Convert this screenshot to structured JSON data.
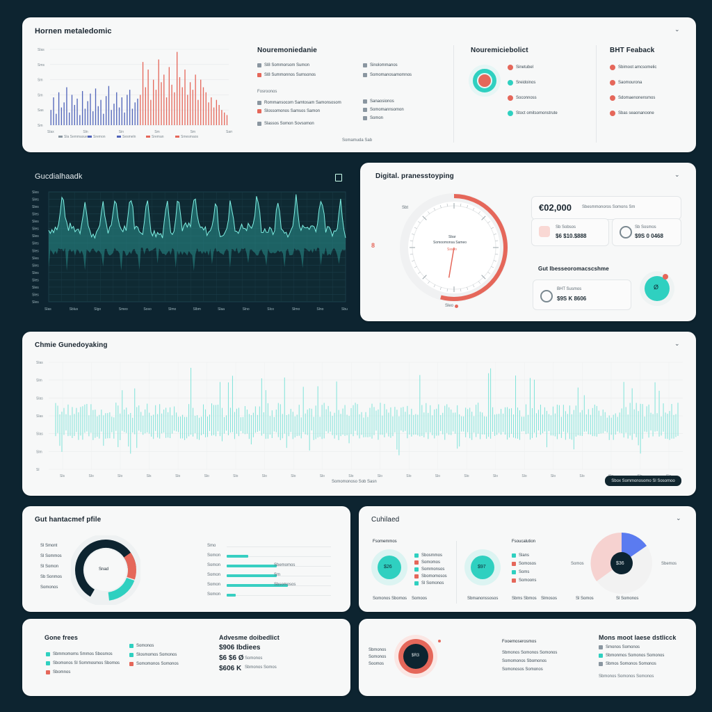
{
  "panel1": {
    "title": "Hornen metaledomic",
    "mid_title": "Nouremoniedanie",
    "mid_subtitle": "Fosroonos",
    "right_title": "Nouremiciebolict",
    "far_title": "BHT Feaback",
    "footer": "Somamuda Sab",
    "mid_items": [
      "Sl8 Sommorsom Sumon",
      "Sl8 Summonnos Sumsonos",
      "Rommansocom Samtosam Samonsosom",
      "Slossomonos Samsos Samon",
      "Slassos Somon Sovsomon"
    ],
    "mid_right_items": [
      "Sinolommanos",
      "Somomanosamomnos",
      "Sanaosionos",
      "Somomannsomon",
      "Somon"
    ],
    "right_items": [
      "Sinetubel",
      "Sreidoinos",
      "Soconnoss",
      "Stoct omitsomonstrute"
    ],
    "far_items": [
      "Sbimoot amcsomelic",
      "Saomourona",
      "Sdomaenonensmos",
      "Sbas seaonanoone"
    ],
    "legend": [
      "Sla Semmasue",
      "Sremon",
      "Sesmeln",
      "Sreman",
      "Smesmaos"
    ],
    "chart_data": {
      "type": "bar",
      "x_ticks": [
        "Slax",
        "Sln",
        "Sin",
        "Sm",
        "Sm",
        "Sam"
      ],
      "y_ticks": [
        "Slas",
        "Sms",
        "Sm",
        "Sm",
        "Sas",
        "Sm"
      ],
      "series": [
        {
          "values": [
            12,
            22,
            9,
            26,
            14,
            18,
            30,
            10,
            24,
            16,
            21,
            8,
            27,
            13,
            19,
            25,
            11,
            29,
            15,
            20,
            9,
            23,
            31,
            12,
            17,
            26,
            14,
            22,
            10,
            24,
            28,
            13,
            18,
            21
          ]
        },
        {
          "values": [
            24,
            50,
            30,
            44,
            20,
            36,
            28,
            52,
            34,
            40,
            22,
            46,
            32,
            26,
            58,
            38,
            30,
            44,
            24,
            34,
            28,
            40,
            20,
            36,
            30,
            26,
            18,
            22,
            14,
            20,
            16,
            12,
            10,
            8
          ]
        }
      ]
    }
  },
  "panel2": {
    "title": "Gucdialhaadk",
    "x_ticks": [
      "Slas",
      "Sblus",
      "Slgo",
      "Smeo",
      "Soso",
      "Slmo",
      "Slbm",
      "Slaa",
      "Slno",
      "Slco",
      "Slmo",
      "Slno",
      "Sbu"
    ],
    "y_ticks": [
      "Sles",
      "Sles",
      "Sles",
      "Sles",
      "Sles",
      "Sles",
      "Sles",
      "Sles",
      "Sles",
      "Sles",
      "Sles",
      "Sles",
      "Sles",
      "Sles",
      "Sles",
      "Sles"
    ]
  },
  "panel3": {
    "title": "Digital. pranesstoyping",
    "gauge_label_top": "Sbar",
    "gauge_label_mid": "Somoomonsa Sameo",
    "gauge_label_low": "Sssoo",
    "gauge_footer": "Sleo",
    "gauge_left": "Sbt",
    "gauge_value": 0.42,
    "gauge_badge": "8",
    "amount": "€02,000",
    "amount_note": "Sbesmmonoros Somons Sm",
    "card1_title": "Sb Sobsos",
    "card1_value": "$6 $10.$888",
    "card2_title": "Sb Sosmos",
    "card2_value": "$9S 0 0468",
    "section_title": "Gut Ibesseoromacscshme",
    "card3_title": "BHT Susmos",
    "card3_value": "$9S K 8606",
    "ring_badge": "Ø"
  },
  "panel4": {
    "title": "Chmie Gunedoyaking",
    "button": "Sbox Sommonosomo Sl Sosomoo",
    "footer": "Somomonoso Sob Sasn",
    "x_ticks": [
      "Sls",
      "Slo",
      "Slo",
      "Sls",
      "Slo",
      "Slo",
      "Slo",
      "Slo",
      "Slo",
      "Slo",
      "Slo",
      "Slo",
      "Slo",
      "Slo",
      "Slo",
      "Slo",
      "Slo",
      "Slo",
      "Slo",
      "Slo",
      "Slo",
      "Slo"
    ],
    "y_ticks": [
      "Slas",
      "Slm",
      "Slas",
      "Slas",
      "Slas",
      "Slm",
      "Sl"
    ]
  },
  "panel5": {
    "title": "Gut hantacmef pfile",
    "donut_label": "Snad",
    "donut_side_labels": [
      "Sl Smont",
      "Sl Sommos",
      "Sl Somon",
      "Sb Sonmos",
      "Somonos"
    ],
    "bars": [
      {
        "label": "Smo",
        "value": 0.0,
        "note": ""
      },
      {
        "label": "Somon",
        "value": 0.28,
        "note": ""
      },
      {
        "label": "Somon",
        "value": 0.65,
        "note": "Sbemomos"
      },
      {
        "label": "Somon",
        "value": 0.65,
        "note": "Sm"
      },
      {
        "label": "Somon",
        "value": 0.8,
        "note": "Sbsomosos"
      },
      {
        "label": "Somon",
        "value": 0.12,
        "note": ""
      }
    ]
  },
  "panel6": {
    "title": "Cuhilaed",
    "sub1": "Fsomemmos",
    "sub2": "Fsoucalution",
    "ring1": "$26",
    "ring2": "$97",
    "ring3": "$36",
    "list1": [
      "Sbosmmos",
      "Somomos",
      "Sommonsos",
      "Sbomomosos",
      "Sl Somonos"
    ],
    "list2": [
      "Slans",
      "Somosos",
      "Soms",
      "Somoons"
    ],
    "foot1": [
      "Somonos Sbomos",
      "Somoos"
    ],
    "foot2": [
      "Sbmanonssosos",
      "Sbms Sbmos",
      "Slmosos"
    ],
    "foot3": [
      "Sl Somos",
      "Sl Somonos"
    ],
    "pie_left": "Somos",
    "pie_right": "Sbemos"
  },
  "panel7": {
    "title": "Gone frees",
    "items": [
      "Sbmmomoms Smmos Sbosmos",
      "Sbomonos Sl Sommosmos Sbomos",
      "Sbomnos"
    ],
    "items_right": [
      "Somonos",
      "Slosmomos Somonos",
      "Somomonos Somonos"
    ],
    "adv_title": "Advesme doibedlict",
    "adv_lines": [
      "$906 Ibdiees",
      "$6 $6 Ø",
      "$606 K"
    ],
    "adv_notes": [
      "Somonos",
      "Sbmonos Somos"
    ]
  },
  "panel8": {
    "ring_value": "$R3",
    "left_labels": [
      "Sbmonos",
      "Somonos",
      "Soomos"
    ],
    "mid_title": "Fooemoserosmos",
    "mid_lines": [
      "Sbmonos Somonos Somonos",
      "Somomonos Sbomonos",
      "Somonosos Somonos"
    ],
    "right_title": "Mons moot laese dstlicck",
    "right_items": [
      "Smonos Somonos",
      "Sbmonmos Somonos Somonos",
      "Sbmos Somonos Somonos"
    ],
    "right_foot": "Sbmonos Somonos Somonos"
  },
  "colors": {
    "teal": "#2fd0c0",
    "red": "#e5675a",
    "navy": "#0d2430",
    "blue": "#4f63b9"
  }
}
